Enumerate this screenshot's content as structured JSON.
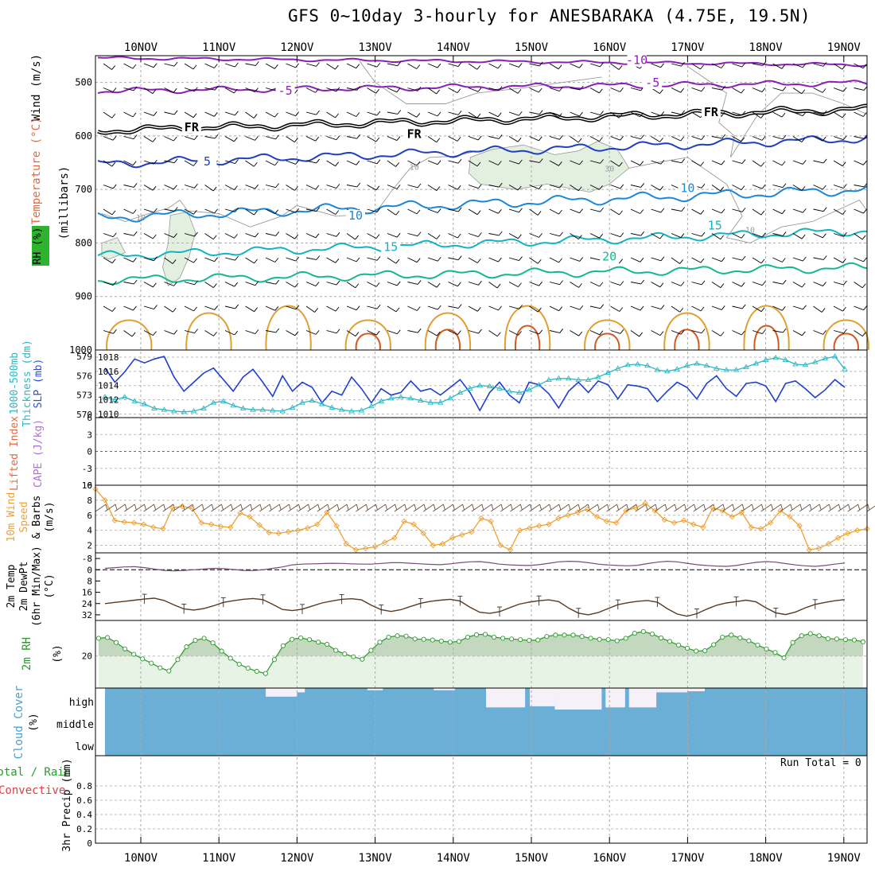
{
  "title": "GFS 0~10day 3-hourly for ANESBARAKA (4.75E, 19.5N)",
  "run_total": "Run Total = 0",
  "colors": {
    "purple": "#8a1fb5",
    "black": "#000000",
    "blue_dark": "#1f3fc0",
    "blue_mid": "#1b87d8",
    "cyan": "#13b3c3",
    "teal": "#14b890",
    "orange": "#e0a030",
    "red_orange": "#d05a20",
    "slp_line": "#1f3fd0",
    "thickness_line": "#2bb8c4",
    "wind_line": "#f0a030",
    "rh_line": "#2a9a2a",
    "rh_fill": "#e7f3e5",
    "cloud_fill": "#6baed6",
    "cloud_clear": "#f6f0f8"
  },
  "chart_data": [
    {
      "type": "line",
      "panel": "upper-air",
      "ylabel_parts": [
        "Wind (m/s)",
        "Temperature (°C)",
        "RH (%)",
        "(millibars)"
      ],
      "yticks": [
        500,
        600,
        700,
        800,
        900,
        1000
      ],
      "ylim": [
        1000,
        450
      ],
      "xticks": [
        "10NOV",
        "11NOV",
        "12NOV",
        "13NOV",
        "14NOV",
        "15NOV",
        "16NOV",
        "17NOV",
        "18NOV",
        "19NOV"
      ],
      "isotherm_labels": [
        {
          "text": "-10",
          "day": 6.35,
          "p": 463
        },
        {
          "text": "-5",
          "day": 1.85,
          "p": 520
        },
        {
          "text": "-5",
          "day": 6.55,
          "p": 505
        },
        {
          "text": "FR",
          "day": 0.65,
          "p": 588
        },
        {
          "text": "FR",
          "day": 3.5,
          "p": 601
        },
        {
          "text": "FR",
          "day": 7.3,
          "p": 560
        },
        {
          "text": "5",
          "day": 0.85,
          "p": 652
        },
        {
          "text": "10",
          "day": 2.75,
          "p": 753
        },
        {
          "text": "10",
          "day": 7.0,
          "p": 702
        },
        {
          "text": "15",
          "day": 3.2,
          "p": 812
        },
        {
          "text": "15",
          "day": 7.35,
          "p": 772
        },
        {
          "text": "20",
          "day": 6.0,
          "p": 830
        }
      ],
      "rh_labels": [
        {
          "text": "10",
          "day": 0.0,
          "p": 752
        },
        {
          "text": "10",
          "day": 3.5,
          "p": 657
        },
        {
          "text": "30",
          "day": 6.0,
          "p": 660
        },
        {
          "text": "10",
          "day": 7.8,
          "p": 775
        }
      ]
    },
    {
      "type": "line",
      "panel": "thickness-slp",
      "ylabel_parts": [
        "1000-500mb",
        "Thickness (dm)",
        "SLP (mb)"
      ],
      "left_ticks": [
        570,
        573,
        576,
        579
      ],
      "right_ticks": [
        1010,
        1012,
        1014,
        1016,
        1018
      ],
      "series": [
        {
          "name": "Thickness (dm)",
          "values": [
            577.2,
            575.0,
            576.6,
            578.6,
            578.0,
            578.6,
            579.0,
            575.8,
            573.6,
            575.0,
            576.4,
            577.2,
            575.4,
            573.6,
            575.8,
            577.0,
            575.0,
            572.8,
            576.0,
            573.6,
            575.0,
            574.2,
            571.8,
            573.6,
            573.0,
            575.8,
            574.0,
            571.8,
            574.0,
            573.0,
            573.4,
            575.2,
            573.6,
            574.0,
            573.0,
            574.2,
            575.4,
            573.4,
            570.6,
            573.4,
            575.0,
            573.0,
            571.8,
            575.0,
            574.6,
            573.2,
            571.0,
            573.6,
            575.0,
            573.4,
            575.2,
            574.6,
            572.4,
            574.6,
            574.4,
            574.0,
            572.0,
            573.6,
            575.0,
            574.2,
            572.4,
            574.8,
            576.0,
            574.0,
            572.8,
            574.8,
            575.0,
            574.4,
            572.0,
            574.8,
            575.2,
            574.0,
            572.6,
            573.8,
            575.4,
            574.2
          ]
        },
        {
          "name": "SLP (mb)",
          "values": [
            1012.4,
            1012.0,
            1012.4,
            1011.8,
            1011.4,
            1010.8,
            1010.6,
            1010.4,
            1010.3,
            1010.4,
            1010.8,
            1011.6,
            1011.8,
            1011.2,
            1010.8,
            1010.6,
            1010.6,
            1010.5,
            1010.4,
            1010.9,
            1011.6,
            1011.9,
            1011.4,
            1010.9,
            1010.6,
            1010.4,
            1010.5,
            1011.1,
            1011.8,
            1012.2,
            1012.4,
            1012.2,
            1011.9,
            1011.6,
            1011.6,
            1012.2,
            1013.0,
            1013.6,
            1014.0,
            1013.9,
            1013.6,
            1013.2,
            1013.0,
            1013.4,
            1014.1,
            1014.8,
            1015.0,
            1015.0,
            1014.8,
            1014.8,
            1015.2,
            1015.8,
            1016.4,
            1016.9,
            1017.0,
            1016.8,
            1016.2,
            1016.0,
            1016.3,
            1016.8,
            1017.1,
            1016.8,
            1016.4,
            1016.2,
            1016.2,
            1016.6,
            1017.1,
            1017.6,
            1017.9,
            1017.6,
            1017.0,
            1016.9,
            1017.3,
            1017.8,
            1018.1,
            1016.3
          ]
        }
      ]
    },
    {
      "type": "line",
      "panel": "stability",
      "ylabel_parts": [
        "Lifted Index",
        "CAPE (J/kg)"
      ],
      "yticks": [
        -6,
        -3,
        0,
        3,
        6
      ],
      "ylim": [
        6,
        -6
      ],
      "series": [
        {
          "name": "Lifted Index",
          "values": []
        }
      ]
    },
    {
      "type": "line",
      "panel": "10m-wind",
      "ylabel_parts": [
        "10m Wind",
        "Speed",
        "& Barbs",
        "(m/s)"
      ],
      "yticks": [
        2,
        4,
        6,
        8,
        10
      ],
      "ylim": [
        1,
        10
      ],
      "series": [
        {
          "name": "10m Wind Speed",
          "values": [
            9.5,
            8.0,
            5.3,
            5.1,
            5.0,
            4.8,
            4.4,
            4.2,
            7.0,
            7.2,
            6.9,
            5.0,
            4.8,
            4.5,
            4.4,
            6.3,
            5.8,
            4.7,
            3.7,
            3.6,
            3.8,
            4.0,
            4.3,
            4.8,
            6.4,
            4.6,
            2.2,
            1.4,
            1.6,
            1.8,
            2.4,
            3.0,
            5.2,
            4.8,
            3.6,
            2.0,
            2.2,
            3.0,
            3.4,
            3.8,
            5.6,
            5.2,
            2.0,
            1.4,
            4.0,
            4.3,
            4.6,
            4.8,
            5.6,
            6.0,
            6.4,
            6.8,
            5.8,
            5.2,
            5.0,
            6.6,
            7.0,
            7.6,
            6.6,
            5.4,
            5.0,
            5.3,
            4.8,
            4.4,
            7.0,
            6.6,
            5.8,
            6.4,
            4.4,
            4.2,
            5.0,
            6.6,
            5.8,
            4.6,
            1.4,
            1.6,
            2.2,
            3.0,
            3.6,
            4.0,
            4.2
          ]
        }
      ]
    },
    {
      "type": "area",
      "panel": "2m-temp",
      "ylabel_parts": [
        "2m Temp",
        "2m DewPt",
        "(6hr Min/Max)",
        "(°C)"
      ],
      "yticks": [
        -8,
        0,
        8,
        16,
        24,
        32
      ],
      "ylim": [
        -12,
        36
      ],
      "series": [
        {
          "name": "2m Temp",
          "values": [
            24.0,
            23.2,
            22.4,
            21.6,
            20.8,
            20.2,
            21.8,
            25.0,
            27.8,
            28.6,
            27.6,
            25.6,
            23.2,
            22.0,
            21.0,
            20.4,
            21.2,
            24.6,
            28.2,
            29.0,
            28.0,
            25.8,
            23.6,
            22.2,
            21.0,
            20.6,
            21.4,
            25.2,
            28.4,
            29.6,
            28.4,
            26.0,
            23.8,
            22.4,
            21.6,
            21.0,
            22.2,
            26.6,
            30.2,
            31.0,
            29.8,
            27.0,
            24.4,
            23.0,
            22.0,
            21.4,
            22.6,
            27.2,
            30.8,
            32.0,
            30.4,
            27.6,
            24.8,
            23.4,
            22.4,
            21.8,
            23.0,
            27.6,
            31.4,
            33.0,
            31.2,
            28.0,
            25.2,
            23.6,
            22.6,
            21.6,
            22.8,
            27.0,
            30.6,
            31.8,
            30.0,
            27.0,
            24.6,
            23.2,
            22.0,
            21.2
          ]
        },
        {
          "name": "2m DewPt",
          "values": [
            -1.0,
            -1.5,
            -2.0,
            -2.2,
            -1.5,
            -0.5,
            0.5,
            0.8,
            0.5,
            0.0,
            -0.5,
            -1.0,
            -0.8,
            -0.2,
            0.5,
            0.6,
            0.0,
            -1.0,
            -2.0,
            -3.5,
            -4.0,
            -4.2,
            -4.4,
            -4.6,
            -4.5,
            -4.2,
            -4.0,
            -4.0,
            -4.5,
            -5.0,
            -5.0,
            -4.6,
            -4.2,
            -3.8,
            -3.6,
            -4.2,
            -5.0,
            -5.6,
            -5.8,
            -5.0,
            -4.0,
            -3.5,
            -3.2,
            -3.0,
            -3.6,
            -4.6,
            -5.6,
            -6.0,
            -5.8,
            -5.0,
            -4.0,
            -3.4,
            -3.0,
            -2.8,
            -3.2,
            -4.4,
            -5.4,
            -6.0,
            -5.6,
            -4.6,
            -3.6,
            -3.0,
            -2.6,
            -2.4,
            -3.0,
            -4.2,
            -5.2,
            -5.8,
            -5.4,
            -4.4,
            -3.4,
            -2.8,
            -2.4,
            -3.0,
            -4.0,
            -4.8
          ]
        }
      ]
    },
    {
      "type": "area",
      "panel": "2m-rh",
      "ylabel_parts": [
        "2m RH",
        "(%)"
      ],
      "yticks": [
        20
      ],
      "ylim": [
        0,
        38
      ],
      "series": [
        {
          "name": "2m RH",
          "values": [
            10.0,
            9.6,
            12.4,
            16.0,
            19.0,
            21.6,
            24.0,
            26.6,
            28.4,
            22.0,
            14.8,
            11.2,
            10.0,
            12.6,
            17.2,
            21.2,
            24.6,
            26.8,
            28.6,
            29.8,
            22.0,
            14.2,
            10.6,
            9.8,
            10.8,
            12.2,
            13.4,
            16.8,
            18.8,
            20.4,
            21.8,
            16.8,
            12.2,
            9.4,
            8.6,
            8.8,
            10.4,
            10.6,
            11.0,
            11.6,
            12.2,
            11.8,
            9.4,
            8.0,
            7.8,
            9.4,
            10.0,
            10.4,
            10.8,
            11.2,
            11.0,
            9.0,
            8.2,
            8.2,
            8.2,
            9.0,
            10.0,
            10.6,
            10.8,
            11.4,
            10.0,
            7.2,
            6.2,
            7.6,
            9.8,
            11.8,
            13.8,
            15.6,
            17.2,
            17.0,
            13.6,
            9.4,
            8.2,
            9.8,
            11.4,
            13.8,
            16.0,
            18.0,
            21.0,
            12.4,
            8.6,
            7.4,
            8.6,
            10.2,
            10.4,
            10.8,
            11.0,
            12.0
          ]
        }
      ]
    },
    {
      "type": "bar",
      "panel": "cloud-cover",
      "ylabel_parts": [
        "Cloud Cover",
        "(%)"
      ],
      "level_labels": [
        "high",
        "middle",
        "low"
      ]
    },
    {
      "type": "bar",
      "panel": "precip",
      "ylabel_parts": [
        "Total / Rain",
        "Convective",
        "3hr Precip (mm)"
      ],
      "yticks": [
        0,
        0.2,
        0.4,
        0.6,
        0.8
      ],
      "ylim": [
        0,
        1.0
      ],
      "series": [
        {
          "name": "3hr Precip",
          "values": []
        }
      ]
    }
  ],
  "xaxis_bottom_ticks": [
    "10NOV",
    "11NOV",
    "12NOV",
    "13NOV",
    "14NOV",
    "15NOV",
    "16NOV",
    "17NOV",
    "18NOV",
    "19NOV"
  ],
  "cloud_gaps": [
    {
      "from": 1.6,
      "to": 2.0,
      "depth": 0.4
    },
    {
      "from": 1.92,
      "to": 2.1,
      "depth": 0.2
    },
    {
      "from": 2.9,
      "to": 3.1,
      "depth": 0.1
    },
    {
      "from": 3.75,
      "to": 4.02,
      "depth": 0.1
    },
    {
      "from": 4.42,
      "to": 4.92,
      "depth": 0.9
    },
    {
      "from": 4.98,
      "to": 5.3,
      "depth": 0.85
    },
    {
      "from": 5.3,
      "to": 5.9,
      "depth": 1.0
    },
    {
      "from": 5.95,
      "to": 6.2,
      "depth": 0.9
    },
    {
      "from": 6.25,
      "to": 6.6,
      "depth": 0.9
    },
    {
      "from": 6.6,
      "to": 7.0,
      "depth": 0.2
    },
    {
      "from": 7.0,
      "to": 7.22,
      "depth": 0.15
    }
  ]
}
